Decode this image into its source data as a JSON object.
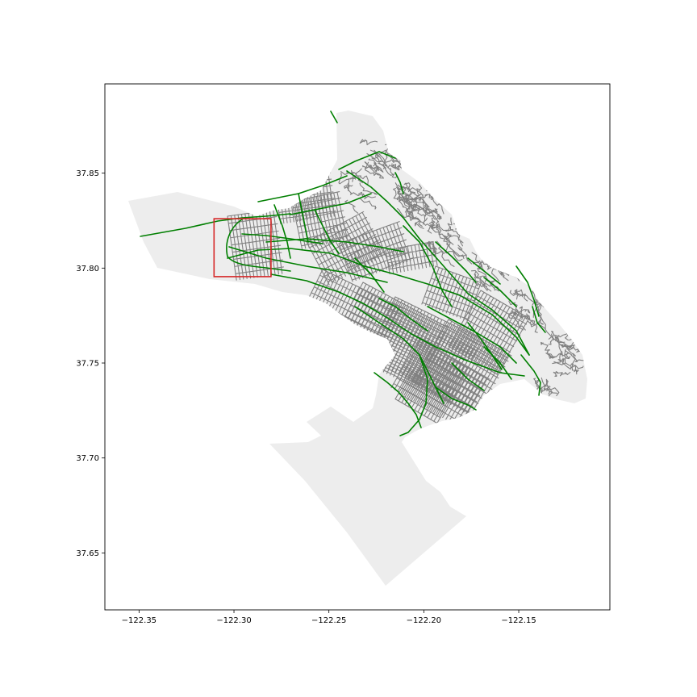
{
  "chart_data": {
    "type": "map",
    "title": "",
    "xlabel": "",
    "ylabel": "",
    "xlim": [
      -122.368,
      -122.102
    ],
    "ylim": [
      37.62,
      37.897
    ],
    "x_ticks": [
      -122.35,
      -122.3,
      -122.25,
      -122.2,
      -122.15
    ],
    "x_tick_labels": [
      "−122.35",
      "−122.30",
      "−122.25",
      "−122.20",
      "−122.15"
    ],
    "y_ticks": [
      37.65,
      37.7,
      37.75,
      37.8,
      37.85
    ],
    "y_tick_labels": [
      "37.65",
      "37.70",
      "37.75",
      "37.80",
      "37.85"
    ],
    "grid": false,
    "layers": [
      {
        "name": "city-boundary",
        "color": "#ededed",
        "kind": "polygon"
      },
      {
        "name": "streets",
        "color": "#808080",
        "kind": "lines"
      },
      {
        "name": "major-routes",
        "color": "#008000",
        "kind": "lines"
      },
      {
        "name": "highlight-box",
        "color": "#d62728",
        "kind": "rectangle",
        "lon_range": [
          -122.3105,
          -122.2805
        ],
        "lat_range": [
          37.7955,
          37.826
        ]
      }
    ]
  }
}
